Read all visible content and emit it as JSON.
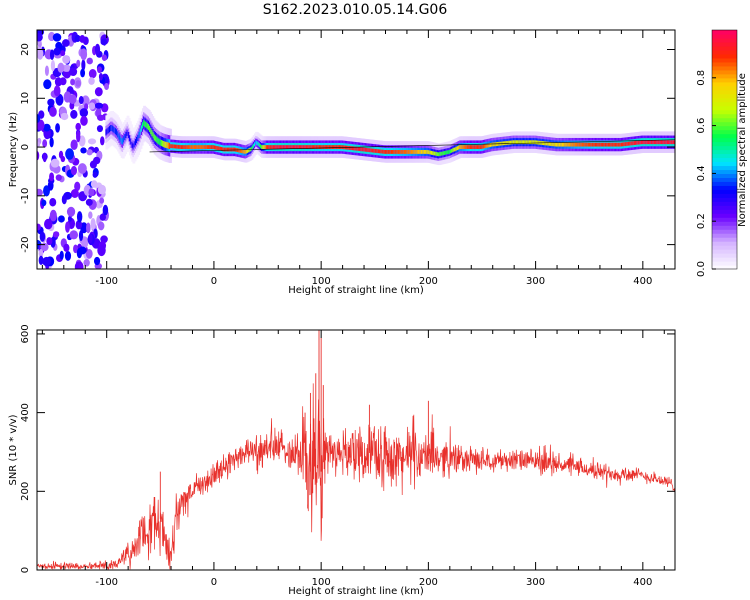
{
  "figure": {
    "title": "S162.2023.010.05.14.G06"
  },
  "chart_data": [
    {
      "type": "heatmap",
      "xlabel": "Height of straight line (km)",
      "ylabel": "Frequency (Hz)",
      "xlim": [
        -165,
        430
      ],
      "ylim": [
        -25,
        24
      ],
      "xticks": [
        -100,
        0,
        100,
        200,
        300,
        400
      ],
      "yticks": [
        -20,
        -10,
        0,
        10,
        20
      ],
      "colorbar": {
        "label": "Normalized spectral amplitude",
        "range": [
          0.0,
          1.0
        ],
        "ticks": [
          0.0,
          0.2,
          0.4,
          0.6,
          0.8
        ],
        "colors": [
          "#ffffff",
          "#d4b3ff",
          "#6a00ff",
          "#0000ff",
          "#00e5ff",
          "#00ff4c",
          "#c8ff00",
          "#ffd000",
          "#ff2a00",
          "#ff0066"
        ]
      },
      "ridge": {
        "x": [
          -100,
          -95,
          -90,
          -85,
          -80,
          -75,
          -70,
          -65,
          -60,
          -55,
          -50,
          -45,
          -40,
          -30,
          -20,
          -10,
          0,
          10,
          20,
          30,
          35,
          40,
          45,
          50,
          60,
          80,
          100,
          120,
          140,
          160,
          180,
          200,
          210,
          220,
          230,
          240,
          250,
          260,
          280,
          300,
          320,
          340,
          360,
          380,
          400,
          420,
          430
        ],
        "y": [
          3,
          4,
          3,
          1,
          3,
          0,
          2,
          5,
          4,
          2,
          1,
          0.5,
          0.2,
          0,
          0,
          0,
          0,
          -0.5,
          -0.5,
          -1,
          -0.5,
          1,
          0,
          0,
          0,
          0,
          0,
          0,
          -0.5,
          -1,
          -1,
          -1,
          -1.5,
          -1,
          0,
          0,
          0,
          0.5,
          1,
          1,
          0.5,
          0.5,
          0.5,
          0.5,
          1,
          1,
          1
        ],
        "amplitude": [
          0.3,
          0.35,
          0.35,
          0.4,
          0.3,
          0.3,
          0.35,
          0.55,
          0.6,
          0.6,
          0.55,
          0.7,
          0.9,
          0.9,
          0.85,
          0.85,
          0.9,
          0.9,
          0.9,
          0.8,
          0.6,
          0.4,
          0.6,
          0.9,
          0.95,
          0.95,
          0.9,
          0.9,
          0.95,
          0.9,
          0.85,
          0.75,
          0.6,
          0.55,
          0.8,
          0.9,
          0.9,
          0.75,
          0.7,
          0.7,
          0.75,
          0.85,
          0.9,
          0.9,
          0.95,
          0.95,
          0.95
        ]
      },
      "noise_region": {
        "x": [
          -165,
          -100
        ],
        "y": [
          -25,
          24
        ],
        "amplitude": [
          0.1,
          0.35
        ]
      },
      "trend_line": {
        "x": [
          -60,
          430
        ],
        "y": [
          -1,
          1.5
        ]
      }
    },
    {
      "type": "line",
      "xlabel": "Height of straight line (km)",
      "ylabel": "SNR (10 * v/v)",
      "xlim": [
        -165,
        430
      ],
      "ylim": [
        0,
        610
      ],
      "xticks": [
        -100,
        0,
        100,
        200,
        300,
        400
      ],
      "yticks": [
        0,
        200,
        400,
        600
      ],
      "color": "#e8302b",
      "envelope": {
        "x": [
          -165,
          -120,
          -90,
          -80,
          -70,
          -60,
          -50,
          -45,
          -40,
          -35,
          -30,
          -25,
          -20,
          -10,
          0,
          10,
          20,
          30,
          40,
          50,
          60,
          70,
          80,
          85,
          90,
          95,
          100,
          105,
          110,
          120,
          140,
          160,
          180,
          200,
          220,
          240,
          260,
          280,
          300,
          320,
          340,
          360,
          380,
          400,
          420,
          430
        ],
        "mean": [
          10,
          10,
          15,
          40,
          80,
          100,
          130,
          60,
          40,
          130,
          180,
          180,
          200,
          220,
          240,
          260,
          290,
          300,
          305,
          310,
          310,
          305,
          300,
          290,
          250,
          260,
          250,
          310,
          300,
          300,
          300,
          290,
          285,
          290,
          285,
          280,
          280,
          280,
          275,
          270,
          260,
          250,
          245,
          240,
          225,
          215
        ],
        "spread": [
          8,
          8,
          10,
          25,
          40,
          60,
          80,
          40,
          40,
          60,
          40,
          40,
          30,
          30,
          30,
          30,
          30,
          30,
          40,
          40,
          40,
          40,
          60,
          120,
          180,
          160,
          200,
          60,
          40,
          50,
          60,
          70,
          70,
          50,
          40,
          30,
          25,
          25,
          25,
          25,
          20,
          20,
          20,
          15,
          15,
          15
        ]
      },
      "peaks": {
        "x": [
          -50,
          -30,
          85,
          90,
          95,
          98,
          100,
          102,
          145,
          200
        ],
        "y": [
          250,
          190,
          400,
          450,
          500,
          610,
          590,
          470,
          420,
          430
        ]
      }
    }
  ]
}
